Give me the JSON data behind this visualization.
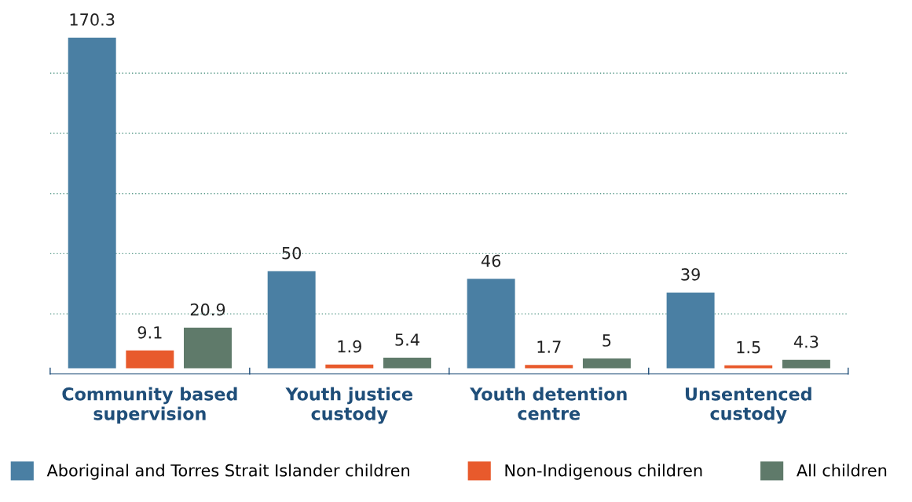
{
  "chart_data": {
    "type": "bar",
    "categories": [
      "Community based\nsupervision",
      "Youth justice\ncustody",
      "Youth detention\ncentre",
      "Unsentenced\ncustody"
    ],
    "series": [
      {
        "name": "Aboriginal and Torres Strait Islander children",
        "color": "#4a7fa3",
        "values": [
          170.3,
          50,
          46,
          39
        ]
      },
      {
        "name": "Non-Indigenous children",
        "color": "#e85a2c",
        "values": [
          9.1,
          1.9,
          1.7,
          1.5
        ]
      },
      {
        "name": "All children",
        "color": "#5f7a6a",
        "values": [
          20.9,
          5.4,
          5,
          4.3
        ]
      }
    ],
    "ref_lines": [
      {
        "axis": "y",
        "value": 28,
        "color": "#5a9a8a",
        "line_style": "dotted"
      },
      {
        "axis": "y",
        "value": 59,
        "color": "#5a9a8a",
        "line_style": "dotted"
      },
      {
        "axis": "y",
        "value": 90,
        "color": "#5a9a8a",
        "line_style": "dotted"
      },
      {
        "axis": "y",
        "value": 121,
        "color": "#5a9a8a",
        "line_style": "dotted"
      },
      {
        "axis": "y",
        "value": 152,
        "color": "#5a9a8a",
        "line_style": "dotted"
      }
    ],
    "legend": "bottom",
    "data_labels": true,
    "tick_labels": "x"
  }
}
